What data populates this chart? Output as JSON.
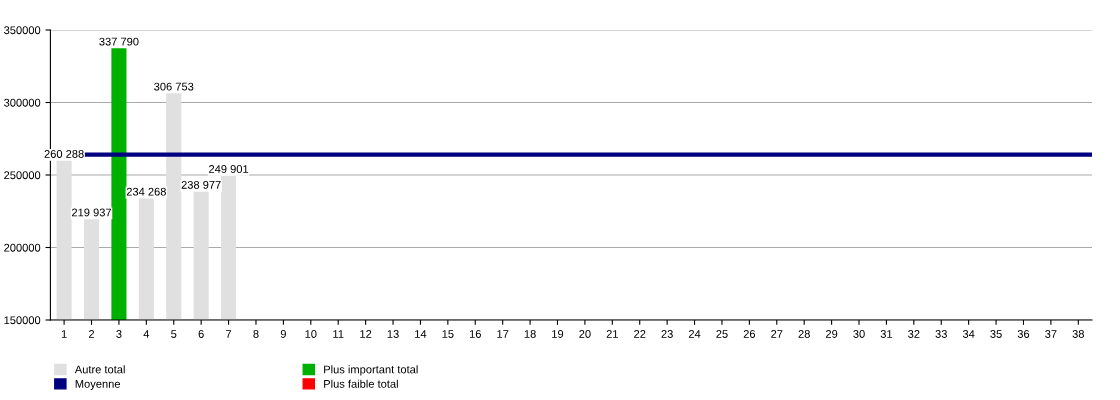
{
  "chart_data": {
    "type": "bar",
    "categories": [
      "1",
      "2",
      "3",
      "4",
      "5",
      "6",
      "7",
      "8",
      "9",
      "10",
      "11",
      "12",
      "13",
      "14",
      "15",
      "16",
      "17",
      "18",
      "19",
      "20",
      "21",
      "22",
      "23",
      "24",
      "25",
      "26",
      "27",
      "28",
      "29",
      "30",
      "31",
      "32",
      "33",
      "34",
      "35",
      "36",
      "37",
      "38"
    ],
    "series": [
      {
        "name": "Autre total",
        "color": "#e0e0e0",
        "values": [
          260288,
          219937,
          null,
          234268,
          306753,
          238977,
          249901,
          null,
          null,
          null,
          null,
          null,
          null,
          null,
          null,
          null,
          null,
          null,
          null,
          null,
          null,
          null,
          null,
          null,
          null,
          null,
          null,
          null,
          null,
          null,
          null,
          null,
          null,
          null,
          null,
          null,
          null,
          null
        ],
        "value_labels": [
          "260 288",
          "219 937",
          null,
          "234 268",
          "306 753",
          "238 977",
          "249 901",
          null,
          null,
          null,
          null,
          null,
          null,
          null,
          null,
          null,
          null,
          null,
          null,
          null,
          null,
          null,
          null,
          null,
          null,
          null,
          null,
          null,
          null,
          null,
          null,
          null,
          null,
          null,
          null,
          null,
          null,
          null
        ]
      },
      {
        "name": "Plus important total",
        "color": "#00b000",
        "values": [
          null,
          null,
          337790,
          null,
          null,
          null,
          null,
          null,
          null,
          null,
          null,
          null,
          null,
          null,
          null,
          null,
          null,
          null,
          null,
          null,
          null,
          null,
          null,
          null,
          null,
          null,
          null,
          null,
          null,
          null,
          null,
          null,
          null,
          null,
          null,
          null,
          null,
          null
        ],
        "value_labels": [
          null,
          null,
          "337 790",
          null,
          null,
          null,
          null,
          null,
          null,
          null,
          null,
          null,
          null,
          null,
          null,
          null,
          null,
          null,
          null,
          null,
          null,
          null,
          null,
          null,
          null,
          null,
          null,
          null,
          null,
          null,
          null,
          null,
          null,
          null,
          null,
          null,
          null,
          null
        ]
      },
      {
        "name": "Plus faible total",
        "color": "#ff0000",
        "values": [
          null,
          null,
          null,
          null,
          null,
          null,
          null,
          null,
          null,
          null,
          null,
          null,
          null,
          null,
          null,
          null,
          null,
          null,
          null,
          null,
          null,
          null,
          null,
          null,
          null,
          null,
          null,
          null,
          null,
          null,
          null,
          null,
          null,
          null,
          null,
          null,
          null,
          null
        ]
      }
    ],
    "ref_lines": [
      {
        "axis": "y",
        "value": 264000,
        "label": "Moyenne",
        "color": "#000080"
      }
    ],
    "ylim": [
      150000,
      350000
    ],
    "yticks": [
      150000,
      200000,
      250000,
      300000,
      350000
    ],
    "grid": "y",
    "legend": "bottom left"
  }
}
